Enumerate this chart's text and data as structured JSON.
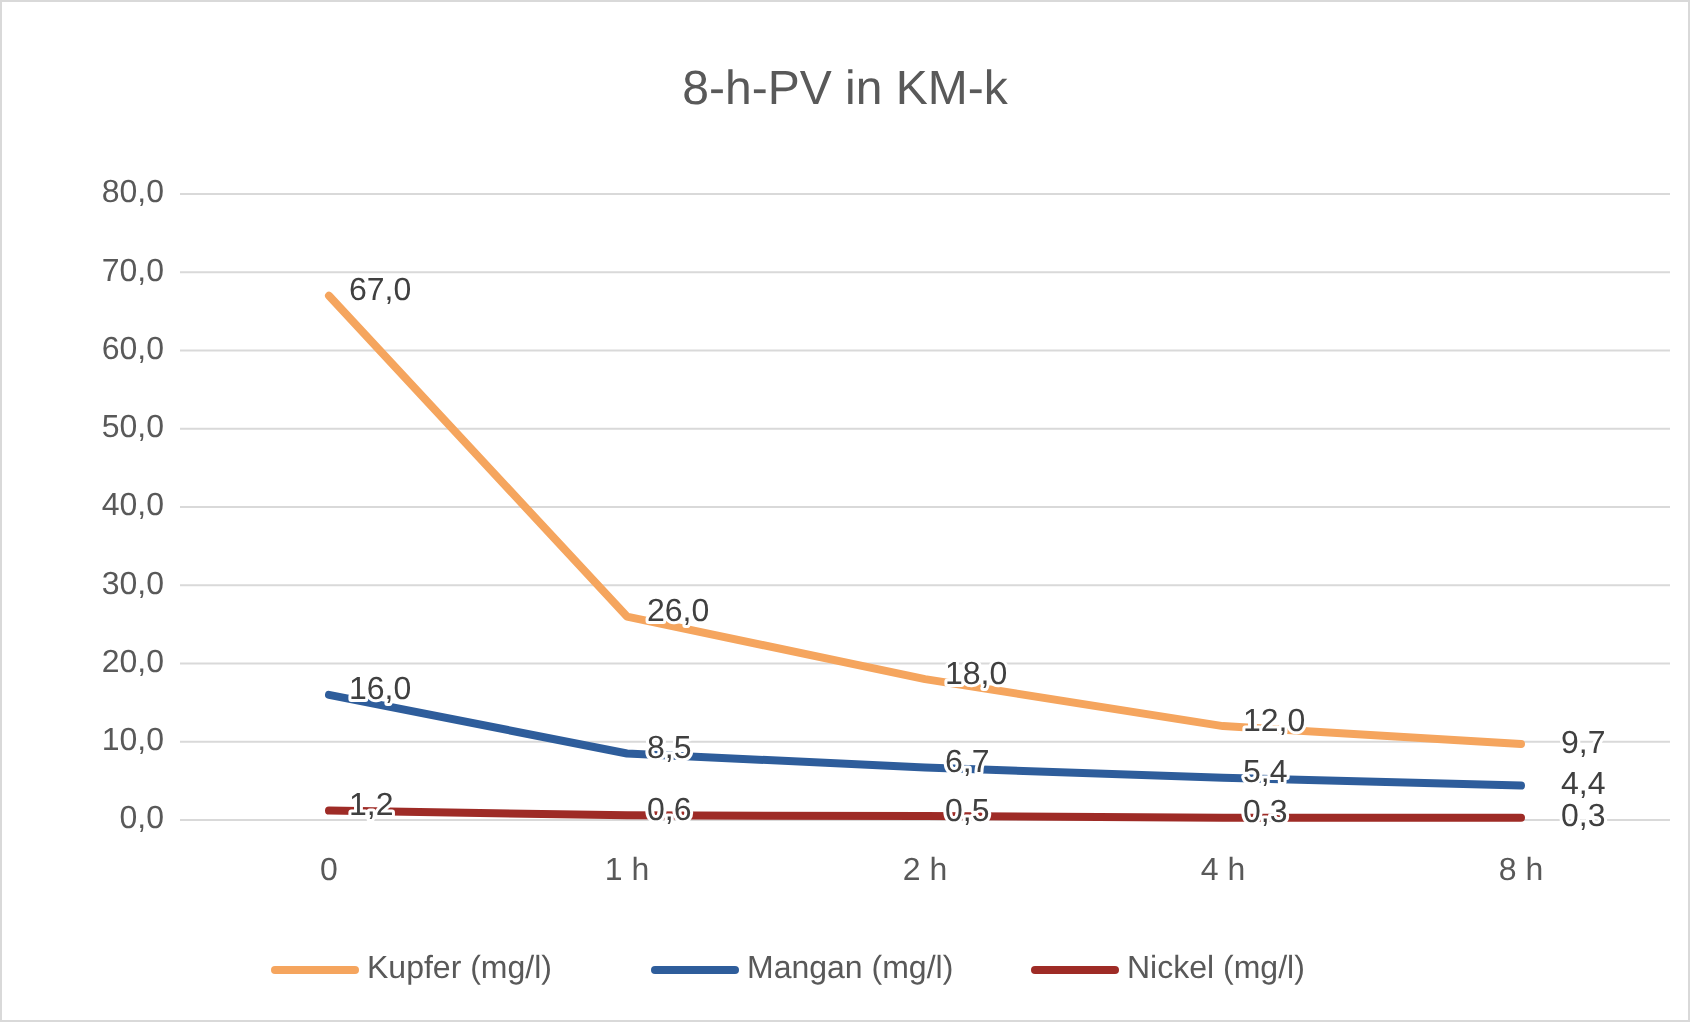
{
  "chart_data": {
    "type": "line",
    "title": "8-h-PV in KM-k",
    "categories": [
      "0",
      "1 h",
      "2 h",
      "4 h",
      "8 h"
    ],
    "series": [
      {
        "name": "Kupfer (mg/l)",
        "color": "#f5a55e",
        "values": [
          67.0,
          26.0,
          18.0,
          12.0,
          9.7
        ],
        "value_labels": [
          "67,0",
          "26,0",
          "18,0",
          "12,0",
          "9,7"
        ]
      },
      {
        "name": "Mangan (mg/l)",
        "color": "#2e5d9b",
        "values": [
          16.0,
          8.5,
          6.7,
          5.4,
          4.4
        ],
        "value_labels": [
          "16,0",
          "8,5",
          "6,7",
          "5,4",
          "4,4"
        ]
      },
      {
        "name": "Nickel (mg/l)",
        "color": "#9e2b26",
        "values": [
          1.2,
          0.6,
          0.5,
          0.3,
          0.3
        ],
        "value_labels": [
          "1,2",
          "0,6",
          "0,5",
          "0,3",
          "0,3"
        ]
      }
    ],
    "ylim": [
      0,
      80
    ],
    "yticks": [
      {
        "value": 0,
        "label": "0,0"
      },
      {
        "value": 10,
        "label": "10,0"
      },
      {
        "value": 20,
        "label": "20,0"
      },
      {
        "value": 30,
        "label": "30,0"
      },
      {
        "value": 40,
        "label": "40,0"
      },
      {
        "value": 50,
        "label": "50,0"
      },
      {
        "value": 60,
        "label": "60,0"
      },
      {
        "value": 70,
        "label": "70,0"
      },
      {
        "value": 80,
        "label": "80,0"
      }
    ],
    "grid": "y",
    "legend": "bottom",
    "marker": "none",
    "line_style": "solid"
  }
}
